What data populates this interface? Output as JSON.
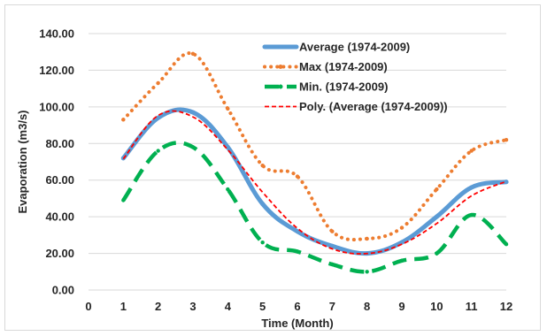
{
  "chart_data": {
    "type": "line",
    "title": "",
    "xlabel": "Time (Month)",
    "ylabel": "Evaporation (m3/s)",
    "xlim": [
      0,
      12
    ],
    "ylim": [
      0,
      140
    ],
    "x_ticks": [
      "0",
      "1",
      "2",
      "3",
      "4",
      "5",
      "6",
      "7",
      "8",
      "9",
      "10",
      "11",
      "12"
    ],
    "y_ticks": [
      "0.00",
      "20.00",
      "40.00",
      "60.00",
      "80.00",
      "100.00",
      "120.00",
      "140.00"
    ],
    "grid": "horizontal",
    "legend_position": "top-right",
    "x": [
      1,
      2,
      3,
      4,
      5,
      6,
      7,
      8,
      9,
      10,
      11,
      12
    ],
    "series": [
      {
        "name": "Average (1974-2009)",
        "values": [
          72,
          94,
          97,
          78,
          47,
          32,
          24,
          20,
          26,
          40,
          56,
          59
        ],
        "color": "#5b9bd5",
        "style": "solid-thick"
      },
      {
        "name": "Max (1974-2009)",
        "values": [
          93,
          113,
          129,
          99,
          68,
          62,
          32,
          28,
          34,
          55,
          76,
          82
        ],
        "color": "#ed7d31",
        "style": "dotted"
      },
      {
        "name": "Min. (1974-2009)",
        "values": [
          49,
          76,
          78,
          55,
          26,
          21,
          14,
          10,
          16,
          20,
          41,
          25
        ],
        "color": "#00b050",
        "style": "dashed-thick"
      },
      {
        "name": "Poly. (Average (1974-2009))",
        "values": [
          71.6,
          95.3,
          94.5,
          76.6,
          53.4,
          33.7,
          22.5,
          19.9,
          25.0,
          36.3,
          51.4,
          59.3
        ],
        "color": "#ff0000",
        "style": "dashed-thin"
      }
    ]
  }
}
